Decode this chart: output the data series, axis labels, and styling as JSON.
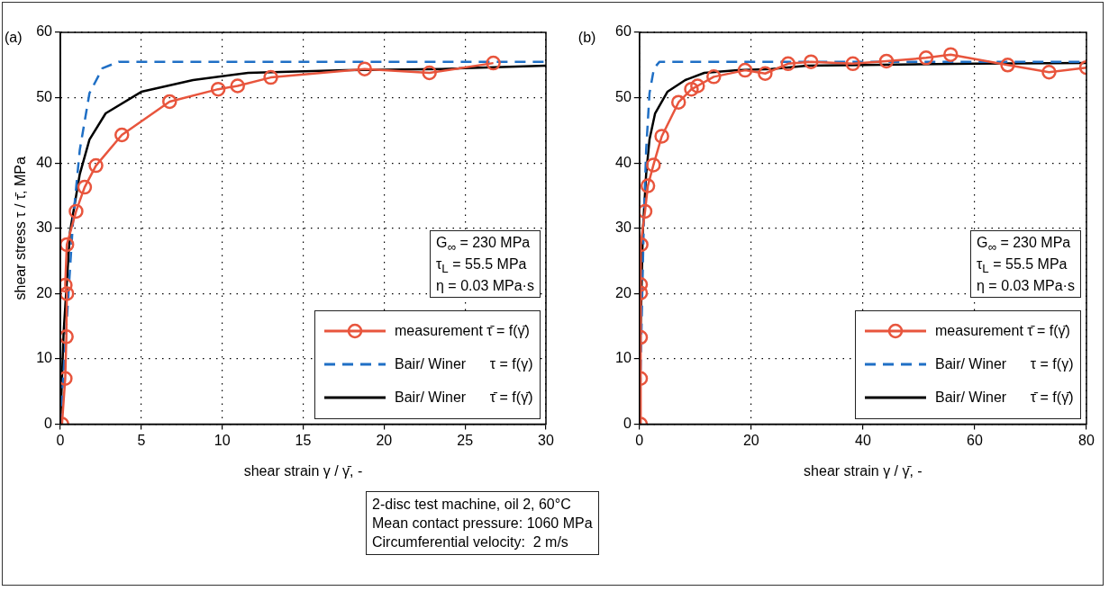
{
  "chart_data": [
    {
      "type": "line",
      "xlabel": "shear strain γ / γ̄, -",
      "ylabel": "shear stress τ / τ̄, MPa",
      "xlim": [
        0,
        30
      ],
      "xticks": [
        0,
        5,
        10,
        15,
        20,
        25,
        30
      ],
      "ylim": [
        0,
        60
      ],
      "yticks": [
        0,
        10,
        20,
        30,
        40,
        50,
        60
      ],
      "grid": true,
      "legend": "bottom right",
      "annotations": [
        "(a)",
        "G$_{∞}$ = 230 MPa",
        "τ$_{L}$ = 55.5 MPa",
        "η = 0.03 MPa·s",
        "2-disc test machine, oil 2, 60°C",
        "Mean contact pressure: 1060 MPa",
        "Circumferential velocity:  2 m/s"
      ],
      "series": [
        {
          "name": "measurement τ̄ = f(γ̄)",
          "color": "#e8553d",
          "marker": "circle",
          "line_style": "solid",
          "x": [
            0.1,
            0.3,
            0.37,
            0.4,
            0.3,
            0.4,
            0.97,
            1.5,
            2.2,
            3.8,
            6.75,
            9.75,
            10.95,
            13,
            18.8,
            22.8,
            26.75
          ],
          "values": [
            0,
            7,
            13.4,
            20,
            21.3,
            27.5,
            32.6,
            36.3,
            39.6,
            44.3,
            49.4,
            51.3,
            51.8,
            53.1,
            54.4,
            53.8,
            55.3
          ]
        },
        {
          "name": "Bair/ Winer      τ = f(γ)",
          "color": "#1f6fc5",
          "marker": "none",
          "line_style": "dashed",
          "x": [
            0,
            0.5,
            0.8,
            1.2,
            1.8,
            2.6,
            3.6,
            30
          ],
          "values": [
            0,
            20,
            31.7,
            42,
            50.7,
            54.5,
            55.5,
            55.5
          ]
        },
        {
          "name": "Bair/ Winer      τ̄ = f(γ̄)",
          "color": "#000000",
          "marker": "none",
          "line_style": "solid",
          "x": [
            0,
            0.2,
            0.6,
            1.2,
            1.8,
            2.8,
            5,
            8.2,
            11.6,
            17.6,
            23.6,
            30
          ],
          "values": [
            0,
            14,
            29.5,
            38.3,
            43.6,
            47.6,
            50.9,
            52.7,
            53.8,
            54.2,
            54.4,
            54.9
          ]
        }
      ]
    },
    {
      "type": "line",
      "xlabel": "shear strain γ / γ̄, -",
      "xlim": [
        0,
        80
      ],
      "xticks": [
        0,
        20,
        40,
        60,
        80
      ],
      "ylim": [
        0,
        60
      ],
      "yticks": [
        0,
        10,
        20,
        30,
        40,
        50,
        60
      ],
      "grid": true,
      "legend": "bottom right",
      "annotations": [
        "(b)",
        "G$_{∞}$ = 230 MPa",
        "τ$_{L}$ = 55.5 MPa",
        "η = 0.03 MPa·s"
      ],
      "series": [
        {
          "name": "measurement τ̄ = f(γ̄)",
          "color": "#e8553d",
          "marker": "circle",
          "line_style": "solid",
          "x": [
            0.2,
            0.2,
            0.2,
            0.2,
            0.2,
            0.3,
            1,
            1.5,
            2.5,
            4,
            7,
            9.3,
            10.4,
            13.3,
            18.9,
            22.5,
            26.6,
            30.7,
            38.2,
            44.2,
            51.3,
            55.7,
            65.9,
            73.3,
            80
          ],
          "values": [
            0,
            7,
            13.3,
            20.1,
            21.4,
            27.5,
            32.6,
            36.5,
            39.7,
            44.1,
            49.3,
            51.3,
            51.8,
            53.2,
            54.2,
            53.7,
            55.2,
            55.5,
            55.2,
            55.6,
            56.1,
            56.6,
            55,
            53.9,
            54.6
          ]
        },
        {
          "name": "Bair/ Winer      τ = f(γ)",
          "color": "#1f6fc5",
          "marker": "none",
          "line_style": "dashed",
          "x": [
            0,
            0.5,
            0.8,
            1.2,
            1.8,
            2.6,
            3.6,
            80
          ],
          "values": [
            0,
            20,
            31.7,
            42,
            50.7,
            54.5,
            55.5,
            55.5
          ]
        },
        {
          "name": "Bair/ Winer      τ̄ = f(γ̄)",
          "color": "#000000",
          "marker": "none",
          "line_style": "solid",
          "x": [
            0,
            0.2,
            0.6,
            1.2,
            1.8,
            2.8,
            5,
            8.2,
            11.6,
            17.6,
            23.6,
            30,
            40,
            60,
            80
          ],
          "values": [
            0,
            14,
            29.5,
            38.3,
            43.6,
            47.6,
            50.9,
            52.7,
            53.8,
            54.2,
            54.4,
            54.9,
            55,
            55.2,
            55.3
          ]
        }
      ]
    }
  ]
}
